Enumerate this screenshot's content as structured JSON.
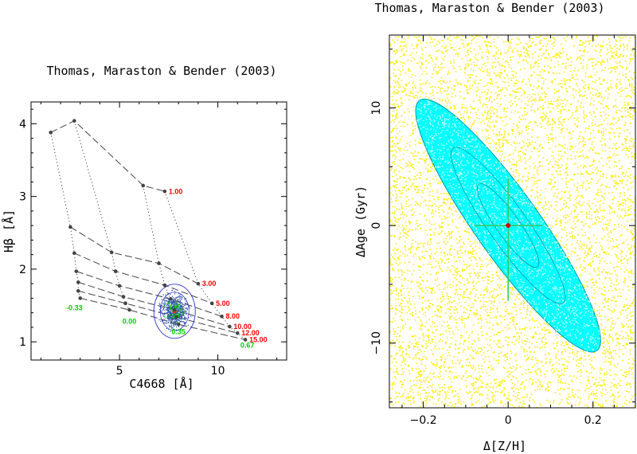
{
  "chart_data": [
    {
      "type": "line",
      "title": "Thomas, Maraston & Bender (2003)",
      "xlabel": "C4668 [Å]",
      "ylabel": "Hβ [Å]",
      "xlim": [
        0.5,
        13.5
      ],
      "ylim": [
        0.75,
        4.3
      ],
      "xticks": [
        5,
        10
      ],
      "yticks": [
        1,
        2,
        3,
        4
      ],
      "grid": false,
      "age_lines": [
        {
          "label": "1.00",
          "points": [
            [
              1.5,
              3.88
            ],
            [
              2.7,
              4.04
            ],
            [
              6.2,
              3.15
            ],
            [
              7.3,
              3.07
            ]
          ]
        },
        {
          "label": "3.00",
          "points": [
            [
              2.5,
              2.58
            ],
            [
              4.6,
              2.23
            ],
            [
              7.0,
              2.08
            ],
            [
              9.0,
              1.8
            ]
          ]
        },
        {
          "label": "5.00",
          "points": [
            [
              2.7,
              2.22
            ],
            [
              4.8,
              1.97
            ],
            [
              7.3,
              1.78
            ],
            [
              9.7,
              1.53
            ]
          ]
        },
        {
          "label": "8.00",
          "points": [
            [
              2.8,
              1.97
            ],
            [
              5.0,
              1.77
            ],
            [
              7.6,
              1.59
            ],
            [
              10.2,
              1.35
            ]
          ]
        },
        {
          "label": "10.00",
          "points": [
            [
              2.9,
              1.82
            ],
            [
              5.2,
              1.62
            ],
            [
              7.8,
              1.44
            ],
            [
              10.6,
              1.21
            ]
          ]
        },
        {
          "label": "12.00",
          "points": [
            [
              2.9,
              1.7
            ],
            [
              5.3,
              1.53
            ],
            [
              7.9,
              1.34
            ],
            [
              11.0,
              1.12
            ]
          ]
        },
        {
          "label": "15.00",
          "points": [
            [
              3.0,
              1.6
            ],
            [
              5.5,
              1.44
            ],
            [
              8.0,
              1.24
            ],
            [
              11.4,
              1.03
            ]
          ]
        }
      ],
      "metallicity_labels": [
        {
          "label": "-0.33",
          "x": 2.7,
          "y": 1.47
        },
        {
          "label": "0.00",
          "x": 5.5,
          "y": 1.28
        },
        {
          "label": "0.35",
          "x": 8.0,
          "y": 1.14
        },
        {
          "label": "0.67",
          "x": 11.5,
          "y": 0.95
        }
      ],
      "measurement": {
        "x": 7.8,
        "y": 1.42
      },
      "colors": {
        "age_labels": "#ff0000",
        "metallicity_labels": "#00cc00",
        "points": "#444444",
        "ellipse": "#3333cc",
        "scatter": "#3355aa",
        "center": "#ff2222"
      }
    },
    {
      "type": "scatter",
      "title": "Thomas, Maraston & Bender (2003)",
      "xlabel": "Δ[Z/H]",
      "ylabel": "ΔAge (Gyr)",
      "xlim": [
        -0.28,
        0.3
      ],
      "ylim": [
        -15.5,
        16.2
      ],
      "xticks": [
        -0.2,
        0,
        0.2
      ],
      "yticks": [
        -10,
        0,
        10
      ],
      "grid": false,
      "confidence_ellipse": {
        "center": [
          0,
          0
        ],
        "dZH_extent": 0.22,
        "dAge_extent": 11.2,
        "correlation": -0.96
      },
      "error_bars": {
        "dZH": 0.08,
        "dAge": 4.0
      },
      "colors": {
        "background_points": "#ffee00",
        "ellipse_fill": "#00ffff",
        "ellipse_points": "#0099aa",
        "error_bars": "#33cc66",
        "center": "#cc0000"
      }
    }
  ]
}
